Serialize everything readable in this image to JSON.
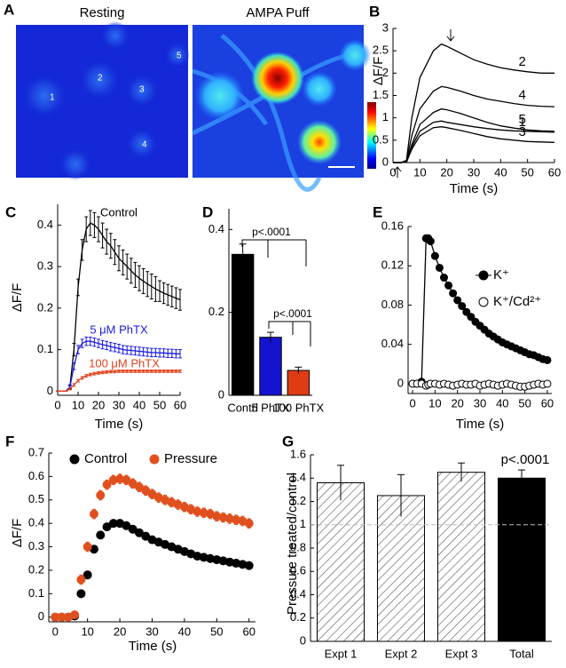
{
  "panel_labels": [
    "A",
    "B",
    "C",
    "D",
    "E",
    "F",
    "G"
  ],
  "image_panel": {
    "titles": [
      "Resting",
      "AMPA Puff"
    ],
    "cell_labels": [
      "1",
      "2",
      "3",
      "4",
      "5"
    ]
  },
  "chart_data": [
    {
      "type": "line",
      "ylabel": "ΔF/F",
      "xlabel": "Time (s)",
      "xlim": [
        0,
        60
      ],
      "xticks": [
        0,
        10,
        20,
        30,
        40,
        50,
        60
      ],
      "ylim": [
        0,
        3
      ],
      "yticks": [
        0,
        0.5,
        1,
        1.5,
        2,
        2.5,
        3
      ],
      "x": [
        0,
        3,
        5,
        7,
        10,
        15,
        18,
        20,
        25,
        30,
        35,
        40,
        45,
        50,
        55,
        60
      ],
      "series": [
        {
          "name": "2",
          "color": "#000000",
          "values": [
            0,
            0,
            0.05,
            1.0,
            1.9,
            2.5,
            2.65,
            2.6,
            2.45,
            2.3,
            2.2,
            2.12,
            2.07,
            2.03,
            2.0,
            2.0
          ]
        },
        {
          "name": "4",
          "color": "#000000",
          "values": [
            0,
            0,
            0.03,
            0.6,
            1.2,
            1.6,
            1.7,
            1.68,
            1.6,
            1.5,
            1.42,
            1.37,
            1.32,
            1.28,
            1.26,
            1.25
          ]
        },
        {
          "name": "5",
          "color": "#000000",
          "values": [
            0,
            0,
            0.02,
            0.4,
            0.85,
            1.12,
            1.2,
            1.18,
            1.1,
            1.0,
            0.9,
            0.82,
            0.77,
            0.73,
            0.71,
            0.7
          ]
        },
        {
          "name": "3",
          "color": "#000000",
          "values": [
            0,
            0,
            0.01,
            0.3,
            0.6,
            0.78,
            0.8,
            0.78,
            0.72,
            0.65,
            0.58,
            0.53,
            0.5,
            0.47,
            0.46,
            0.45
          ]
        },
        {
          "name": "1",
          "color": "#000000",
          "values": [
            0,
            0,
            0.01,
            0.35,
            0.7,
            0.9,
            0.93,
            0.9,
            0.85,
            0.8,
            0.76,
            0.73,
            0.71,
            0.7,
            0.69,
            0.68
          ]
        }
      ]
    },
    {
      "type": "line",
      "ylabel": "ΔF/F",
      "xlabel": "Time (s)",
      "xlim": [
        0,
        60
      ],
      "xticks": [
        0,
        10,
        20,
        30,
        40,
        50,
        60
      ],
      "ylim": [
        -0.01,
        0.45
      ],
      "yticks": [
        0,
        0.1,
        0.2,
        0.3,
        0.4
      ],
      "x": [
        0,
        2,
        4,
        6,
        8,
        10,
        12,
        14,
        16,
        18,
        20,
        22,
        24,
        26,
        28,
        30,
        32,
        34,
        36,
        38,
        40,
        42,
        44,
        46,
        48,
        50,
        52,
        54,
        56,
        58,
        60
      ],
      "series": [
        {
          "name": "Control",
          "color": "#000000",
          "values": [
            0,
            0,
            0,
            0.01,
            0.1,
            0.25,
            0.34,
            0.39,
            0.405,
            0.4,
            0.39,
            0.375,
            0.36,
            0.35,
            0.335,
            0.32,
            0.31,
            0.3,
            0.29,
            0.28,
            0.272,
            0.265,
            0.258,
            0.252,
            0.246,
            0.241,
            0.236,
            0.232,
            0.228,
            0.224,
            0.22
          ],
          "errors": [
            0,
            0,
            0,
            0.005,
            0.015,
            0.02,
            0.025,
            0.03,
            0.03,
            0.03,
            0.03,
            0.03,
            0.03,
            0.03,
            0.03,
            0.03,
            0.03,
            0.03,
            0.03,
            0.03,
            0.03,
            0.03,
            0.03,
            0.03,
            0.03,
            0.025,
            0.025,
            0.025,
            0.025,
            0.025,
            0.025
          ]
        },
        {
          "name": "5 μM PhTX",
          "color": "#1a1ae0",
          "values": [
            0,
            0,
            0,
            0.01,
            0.06,
            0.1,
            0.115,
            0.12,
            0.12,
            0.118,
            0.115,
            0.112,
            0.11,
            0.107,
            0.105,
            0.103,
            0.1,
            0.099,
            0.098,
            0.097,
            0.096,
            0.095,
            0.094,
            0.093,
            0.093,
            0.092,
            0.092,
            0.091,
            0.091,
            0.09,
            0.09
          ],
          "errors": [
            0,
            0,
            0,
            0.003,
            0.008,
            0.01,
            0.01,
            0.01,
            0.01,
            0.01,
            0.01,
            0.01,
            0.01,
            0.01,
            0.01,
            0.01,
            0.01,
            0.01,
            0.01,
            0.01,
            0.01,
            0.01,
            0.01,
            0.01,
            0.01,
            0.01,
            0.01,
            0.01,
            0.01,
            0.01,
            0.01
          ]
        },
        {
          "name": "100 μM PhTX",
          "color": "#e0401a",
          "values": [
            0,
            0,
            0,
            0.005,
            0.015,
            0.025,
            0.032,
            0.037,
            0.04,
            0.042,
            0.044,
            0.045,
            0.046,
            0.047,
            0.047,
            0.048,
            0.048,
            0.048,
            0.048,
            0.048,
            0.048,
            0.048,
            0.048,
            0.048,
            0.048,
            0.048,
            0.048,
            0.048,
            0.048,
            0.048,
            0.048
          ],
          "errors": [
            0,
            0,
            0,
            0.002,
            0.003,
            0.003,
            0.003,
            0.003,
            0.003,
            0.003,
            0.003,
            0.003,
            0.003,
            0.003,
            0.003,
            0.003,
            0.003,
            0.003,
            0.003,
            0.003,
            0.003,
            0.003,
            0.003,
            0.003,
            0.003,
            0.003,
            0.003,
            0.003,
            0.003,
            0.003,
            0.003
          ]
        }
      ]
    },
    {
      "type": "bar",
      "categories": [
        "Contrl",
        "5 PhTX",
        "100 PhTX"
      ],
      "values": [
        0.34,
        0.14,
        0.06
      ],
      "errors": [
        0.025,
        0.012,
        0.008
      ],
      "colors": [
        "#000000",
        "#1414d0",
        "#e03c14"
      ],
      "ylim": [
        0,
        0.45
      ],
      "yticks": [
        0,
        0.2,
        0.4
      ],
      "annotations": [
        "p<.0001",
        "p<.0001"
      ]
    },
    {
      "type": "line",
      "xlabel": "Time (s)",
      "xlim": [
        -2,
        62
      ],
      "xticks": [
        0,
        10,
        20,
        30,
        40,
        50,
        60
      ],
      "ylim": [
        -0.01,
        0.16
      ],
      "yticks": [
        0,
        0.04,
        0.08,
        0.12,
        0.16
      ],
      "x": [
        0,
        2,
        4,
        6,
        7,
        8,
        10,
        12,
        14,
        16,
        18,
        20,
        22,
        24,
        26,
        28,
        30,
        32,
        34,
        36,
        38,
        40,
        42,
        44,
        46,
        48,
        50,
        52,
        54,
        56,
        58,
        60
      ],
      "series": [
        {
          "name": "K⁺",
          "color": "#000000",
          "marker": "filled",
          "line": true,
          "values": [
            0,
            0,
            0.002,
            0.148,
            0.148,
            0.145,
            0.13,
            0.118,
            0.108,
            0.1,
            0.092,
            0.085,
            0.079,
            0.073,
            0.068,
            0.063,
            0.059,
            0.055,
            0.051,
            0.048,
            0.045,
            0.042,
            0.04,
            0.038,
            0.036,
            0.034,
            0.032,
            0.03,
            0.029,
            0.027,
            0.025,
            0.024
          ]
        },
        {
          "name": "K⁺/Cd²⁺",
          "color": "#000000",
          "marker": "open",
          "line": false,
          "values": [
            0,
            0,
            0,
            -0.002,
            -0.001,
            0,
            0,
            -0.001,
            0,
            -0.001,
            -0.002,
            -0.001,
            0,
            -0.001,
            -0.001,
            0,
            -0.002,
            -0.001,
            0,
            -0.001,
            -0.002,
            -0.001,
            0,
            -0.001,
            -0.002,
            -0.003,
            -0.003,
            -0.002,
            -0.001,
            0,
            -0.001,
            0
          ]
        }
      ]
    },
    {
      "type": "scatter",
      "ylabel": "ΔF/F",
      "xlabel": "Time (s)",
      "xlim": [
        -2,
        62
      ],
      "xticks": [
        0,
        10,
        20,
        30,
        40,
        50,
        60
      ],
      "ylim": [
        -0.02,
        0.7
      ],
      "yticks": [
        0,
        0.1,
        0.2,
        0.3,
        0.4,
        0.5,
        0.6,
        0.7
      ],
      "x": [
        0,
        2,
        4,
        6,
        8,
        10,
        12,
        14,
        16,
        18,
        20,
        22,
        24,
        26,
        28,
        30,
        32,
        34,
        36,
        38,
        40,
        42,
        44,
        46,
        48,
        50,
        52,
        54,
        56,
        58,
        60
      ],
      "series": [
        {
          "name": "Control",
          "color": "#000000",
          "values": [
            0,
            0,
            0,
            0.005,
            0.1,
            0.18,
            0.29,
            0.35,
            0.385,
            0.4,
            0.4,
            0.39,
            0.375,
            0.36,
            0.345,
            0.33,
            0.32,
            0.31,
            0.3,
            0.29,
            0.28,
            0.27,
            0.26,
            0.255,
            0.25,
            0.245,
            0.24,
            0.235,
            0.23,
            0.225,
            0.22
          ],
          "errors": [
            0,
            0,
            0,
            0.003,
            0.015,
            0.015,
            0.015,
            0.015,
            0.015,
            0.015,
            0.015,
            0.015,
            0.015,
            0.015,
            0.015,
            0.015,
            0.015,
            0.015,
            0.015,
            0.015,
            0.015,
            0.015,
            0.015,
            0.015,
            0.015,
            0.015,
            0.015,
            0.015,
            0.015,
            0.015,
            0.015
          ]
        },
        {
          "name": "Pressure",
          "color": "#e0501e",
          "values": [
            0,
            0,
            0,
            0.01,
            0.16,
            0.3,
            0.44,
            0.52,
            0.565,
            0.585,
            0.59,
            0.585,
            0.57,
            0.555,
            0.54,
            0.525,
            0.51,
            0.5,
            0.49,
            0.48,
            0.47,
            0.46,
            0.45,
            0.445,
            0.44,
            0.43,
            0.425,
            0.42,
            0.415,
            0.41,
            0.4
          ],
          "errors": [
            0,
            0,
            0,
            0.005,
            0.02,
            0.02,
            0.02,
            0.02,
            0.02,
            0.02,
            0.02,
            0.02,
            0.02,
            0.02,
            0.02,
            0.02,
            0.02,
            0.02,
            0.02,
            0.02,
            0.02,
            0.02,
            0.02,
            0.02,
            0.02,
            0.02,
            0.02,
            0.02,
            0.02,
            0.02,
            0.02
          ]
        }
      ]
    },
    {
      "type": "bar",
      "ylabel": "Pressure treated/control",
      "categories": [
        "Expt 1",
        "Expt 2",
        "Expt 3",
        "Total"
      ],
      "values": [
        1.36,
        1.25,
        1.45,
        1.4
      ],
      "errors": [
        0.15,
        0.18,
        0.08,
        0.07
      ],
      "colors": [
        "#ffffff",
        "#ffffff",
        "#ffffff",
        "#000000"
      ],
      "hatch": [
        true,
        true,
        true,
        false
      ],
      "reference_line": 1,
      "ylim": [
        0,
        1.6
      ],
      "yticks": [
        0,
        0.2,
        0.4,
        0.6,
        0.8,
        1,
        1.2,
        1.4,
        1.6
      ],
      "annotations": [
        "p<.0001"
      ]
    }
  ]
}
